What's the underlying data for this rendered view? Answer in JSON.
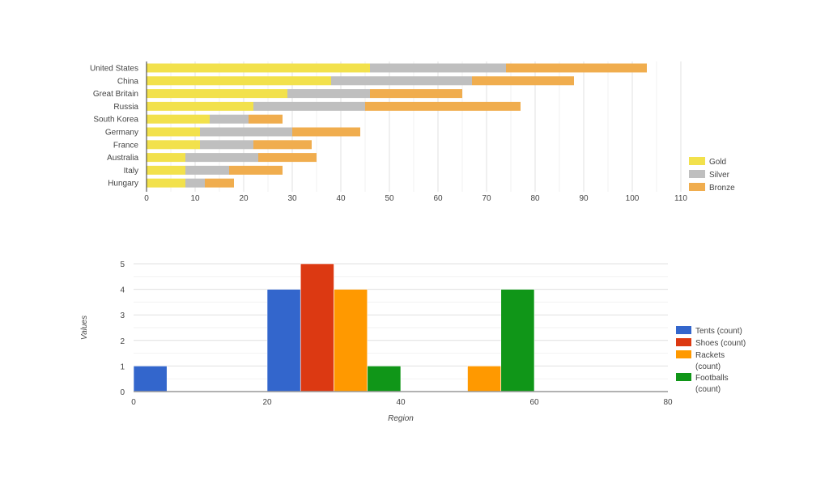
{
  "chart_data": [
    {
      "type": "bar",
      "orientation": "horizontal",
      "stacked": true,
      "categories": [
        "United States",
        "China",
        "Great Britain",
        "Russia",
        "South Korea",
        "Germany",
        "France",
        "Australia",
        "Italy",
        "Hungary"
      ],
      "series": [
        {
          "name": "Gold",
          "color": "#f2e14c",
          "values": [
            46,
            38,
            29,
            22,
            13,
            11,
            11,
            8,
            8,
            8
          ]
        },
        {
          "name": "Silver",
          "color": "#bfbfbf",
          "values": [
            28,
            29,
            17,
            23,
            8,
            19,
            11,
            15,
            9,
            4
          ]
        },
        {
          "name": "Bronze",
          "color": "#f0ad4e",
          "values": [
            29,
            21,
            19,
            32,
            7,
            14,
            12,
            12,
            11,
            6
          ]
        }
      ],
      "xlim": [
        0,
        110
      ],
      "xticks": [
        "0",
        "10",
        "20",
        "30",
        "40",
        "50",
        "60",
        "70",
        "80",
        "90",
        "100",
        "110"
      ],
      "grid": true,
      "legend": "right-bottom"
    },
    {
      "type": "bar",
      "subtype": "histogram",
      "bin_width": 5,
      "xlabel": "Region",
      "ylabel": "Values",
      "xlim": [
        0,
        80
      ],
      "ylim": [
        0,
        5
      ],
      "xticks": [
        "0",
        "20",
        "40",
        "60",
        "80"
      ],
      "yticks": [
        "0",
        "1",
        "2",
        "3",
        "4",
        "5"
      ],
      "grid": true,
      "legend": "right",
      "series": [
        {
          "name": "Tents (count)",
          "color": "#3366cc",
          "bins": [
            {
              "x0": 0,
              "x1": 5,
              "count": 1
            },
            {
              "x0": 20,
              "x1": 25,
              "count": 4
            }
          ]
        },
        {
          "name": "Shoes (count)",
          "color": "#dc3912",
          "bins": [
            {
              "x0": 25,
              "x1": 30,
              "count": 5
            }
          ]
        },
        {
          "name": "Rackets (count)",
          "color": "#ff9900",
          "bins": [
            {
              "x0": 30,
              "x1": 35,
              "count": 4
            },
            {
              "x0": 50,
              "x1": 55,
              "count": 1
            }
          ]
        },
        {
          "name": "Footballs (count)",
          "color": "#109618",
          "bins": [
            {
              "x0": 35,
              "x1": 40,
              "count": 1
            },
            {
              "x0": 55,
              "x1": 60,
              "count": 4
            }
          ]
        }
      ]
    }
  ]
}
